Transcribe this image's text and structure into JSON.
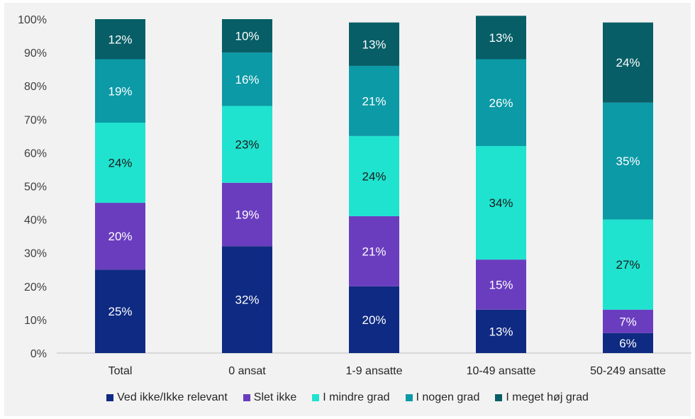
{
  "chart_data": {
    "type": "bar",
    "stacked": true,
    "categories": [
      "Total",
      "0 ansat",
      "1-9 ansatte",
      "10-49 ansatte",
      "50-249 ansatte"
    ],
    "ylim": [
      0,
      100
    ],
    "yticks": [
      "0%",
      "10%",
      "20%",
      "30%",
      "40%",
      "50%",
      "60%",
      "70%",
      "80%",
      "90%",
      "100%"
    ],
    "legend_position": "bottom",
    "series": [
      {
        "name": "Ved ikke/Ikke relevant",
        "color": "#0f2a82",
        "text_color": "#ffffff",
        "values": [
          25,
          32,
          20,
          13,
          6
        ],
        "labels": [
          "25%",
          "32%",
          "20%",
          "13%",
          "6%"
        ]
      },
      {
        "name": "Slet ikke",
        "color": "#6a3dbf",
        "text_color": "#ffffff",
        "values": [
          20,
          19,
          21,
          15,
          7
        ],
        "labels": [
          "20%",
          "19%",
          "21%",
          "15%",
          "7%"
        ]
      },
      {
        "name": "I mindre grad",
        "color": "#1fe3cf",
        "text_color": "#1a1a1a",
        "values": [
          24,
          23,
          24,
          34,
          27
        ],
        "labels": [
          "24%",
          "23%",
          "24%",
          "34%",
          "27%"
        ]
      },
      {
        "name": "I nogen grad",
        "color": "#0b9aa6",
        "text_color": "#ffffff",
        "values": [
          19,
          16,
          21,
          26,
          35
        ],
        "labels": [
          "19%",
          "16%",
          "21%",
          "26%",
          "35%"
        ]
      },
      {
        "name": "I meget høj grad",
        "color": "#075e66",
        "text_color": "#ffffff",
        "values": [
          12,
          10,
          13,
          13,
          24
        ],
        "labels": [
          "12%",
          "10%",
          "13%",
          "13%",
          "24%"
        ]
      }
    ]
  }
}
